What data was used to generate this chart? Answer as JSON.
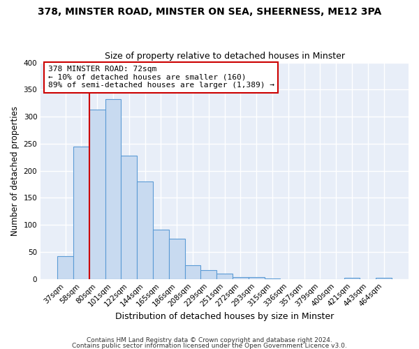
{
  "title": "378, MINSTER ROAD, MINSTER ON SEA, SHEERNESS, ME12 3PA",
  "subtitle": "Size of property relative to detached houses in Minster",
  "xlabel": "Distribution of detached houses by size in Minster",
  "ylabel": "Number of detached properties",
  "bin_labels": [
    "37sqm",
    "58sqm",
    "80sqm",
    "101sqm",
    "122sqm",
    "144sqm",
    "165sqm",
    "186sqm",
    "208sqm",
    "229sqm",
    "251sqm",
    "272sqm",
    "293sqm",
    "315sqm",
    "336sqm",
    "357sqm",
    "379sqm",
    "400sqm",
    "421sqm",
    "443sqm",
    "464sqm"
  ],
  "bar_values": [
    42,
    245,
    313,
    333,
    228,
    180,
    91,
    75,
    25,
    17,
    10,
    4,
    4,
    1,
    0,
    0,
    0,
    0,
    2,
    0,
    2
  ],
  "bar_color": "#c8daf0",
  "bar_edge_color": "#5b9bd5",
  "vline_x_index": 2,
  "vline_color": "#cc0000",
  "ann_line1": "378 MINSTER ROAD: 72sqm",
  "ann_line2": "← 10% of detached houses are smaller (160)",
  "ann_line3": "89% of semi-detached houses are larger (1,389) →",
  "annotation_box_color": "#ffffff",
  "annotation_box_edge": "#cc0000",
  "ylim": [
    0,
    400
  ],
  "yticks": [
    0,
    50,
    100,
    150,
    200,
    250,
    300,
    350,
    400
  ],
  "footer1": "Contains HM Land Registry data © Crown copyright and database right 2024.",
  "footer2": "Contains public sector information licensed under the Open Government Licence v3.0.",
  "bg_color": "#ffffff",
  "plot_bg_color": "#e8eef8",
  "grid_color": "#ffffff",
  "title_fontsize": 10,
  "subtitle_fontsize": 9,
  "xlabel_fontsize": 9,
  "ylabel_fontsize": 8.5,
  "tick_fontsize": 7.5,
  "ann_fontsize": 8,
  "footer_fontsize": 6.5
}
